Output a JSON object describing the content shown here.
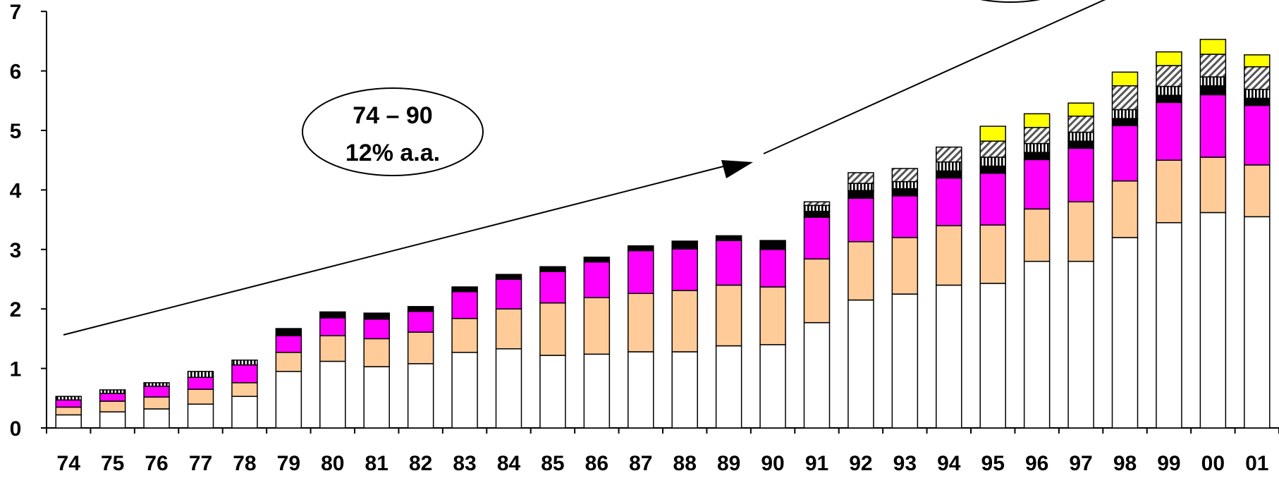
{
  "chart_data": {
    "type": "bar",
    "stacked": true,
    "title": "",
    "xlabel": "",
    "ylabel": "",
    "ylim": [
      0,
      7
    ],
    "yticks": [
      "0",
      "1",
      "2",
      "3",
      "4",
      "5",
      "6",
      "7"
    ],
    "grid": false,
    "categories": [
      "74",
      "75",
      "76",
      "77",
      "78",
      "79",
      "80",
      "81",
      "82",
      "83",
      "84",
      "85",
      "86",
      "87",
      "88",
      "89",
      "90",
      "91",
      "92",
      "93",
      "94",
      "95",
      "96",
      "97",
      "98",
      "99",
      "00",
      "01"
    ],
    "series": [
      {
        "style": "white",
        "color": "#ffffff",
        "values": [
          0.22,
          0.27,
          0.32,
          0.4,
          0.53,
          0.95,
          1.12,
          1.03,
          1.08,
          1.27,
          1.33,
          1.22,
          1.24,
          1.28,
          1.28,
          1.38,
          1.4,
          1.77,
          2.15,
          2.25,
          2.4,
          2.43,
          2.8,
          2.8,
          3.2,
          3.45,
          3.62,
          3.55
        ]
      },
      {
        "style": "peach",
        "color": "#ffcc99",
        "values": [
          0.13,
          0.18,
          0.2,
          0.25,
          0.23,
          0.32,
          0.43,
          0.47,
          0.53,
          0.57,
          0.67,
          0.88,
          0.95,
          0.98,
          1.03,
          1.02,
          0.97,
          1.07,
          0.98,
          0.95,
          1.0,
          0.98,
          0.88,
          1.0,
          0.95,
          1.05,
          0.93,
          0.87
        ]
      },
      {
        "style": "magenta",
        "color": "#ff00ff",
        "values": [
          0.12,
          0.13,
          0.18,
          0.2,
          0.3,
          0.28,
          0.3,
          0.33,
          0.35,
          0.45,
          0.5,
          0.53,
          0.6,
          0.72,
          0.7,
          0.75,
          0.63,
          0.7,
          0.73,
          0.7,
          0.8,
          0.87,
          0.83,
          0.9,
          0.93,
          0.97,
          1.05,
          1.0
        ]
      },
      {
        "style": "black",
        "color": "#000000",
        "values": [
          0.0,
          0.0,
          0.0,
          0.0,
          0.0,
          0.12,
          0.1,
          0.1,
          0.08,
          0.08,
          0.08,
          0.08,
          0.08,
          0.08,
          0.13,
          0.08,
          0.15,
          0.1,
          0.13,
          0.12,
          0.12,
          0.12,
          0.12,
          0.12,
          0.12,
          0.12,
          0.15,
          0.12
        ]
      },
      {
        "style": "vertical-stripes",
        "color": "#000000",
        "values": [
          0.06,
          0.06,
          0.06,
          0.1,
          0.08,
          0.0,
          0.0,
          0.0,
          0.0,
          0.0,
          0.0,
          0.0,
          0.0,
          0.0,
          0.0,
          0.0,
          0.0,
          0.1,
          0.12,
          0.12,
          0.15,
          0.15,
          0.15,
          0.15,
          0.15,
          0.15,
          0.15,
          0.15
        ]
      },
      {
        "style": "hatched",
        "color": "#808080",
        "values": [
          0.0,
          0.0,
          0.0,
          0.0,
          0.0,
          0.0,
          0.0,
          0.0,
          0.0,
          0.0,
          0.0,
          0.0,
          0.0,
          0.0,
          0.0,
          0.0,
          0.0,
          0.06,
          0.18,
          0.22,
          0.25,
          0.27,
          0.27,
          0.27,
          0.4,
          0.35,
          0.38,
          0.38
        ]
      },
      {
        "style": "yellow",
        "color": "#ffff00",
        "values": [
          0.0,
          0.0,
          0.0,
          0.0,
          0.0,
          0.0,
          0.0,
          0.0,
          0.0,
          0.0,
          0.0,
          0.0,
          0.0,
          0.0,
          0.0,
          0.0,
          0.0,
          0.0,
          0.0,
          0.0,
          0.0,
          0.25,
          0.23,
          0.22,
          0.23,
          0.23,
          0.25,
          0.2
        ]
      }
    ],
    "annotations": [
      {
        "line1": "74 – 90",
        "line2": "12% a.a."
      }
    ]
  }
}
